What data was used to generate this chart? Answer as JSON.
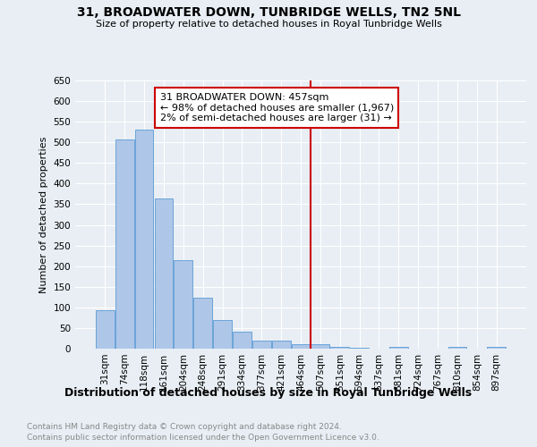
{
  "title1": "31, BROADWATER DOWN, TUNBRIDGE WELLS, TN2 5NL",
  "title2": "Size of property relative to detached houses in Royal Tunbridge Wells",
  "xlabel": "Distribution of detached houses by size in Royal Tunbridge Wells",
  "ylabel": "Number of detached properties",
  "footnote1": "Contains HM Land Registry data © Crown copyright and database right 2024.",
  "footnote2": "Contains public sector information licensed under the Open Government Licence v3.0.",
  "categories": [
    "31sqm",
    "74sqm",
    "118sqm",
    "161sqm",
    "204sqm",
    "248sqm",
    "291sqm",
    "334sqm",
    "377sqm",
    "421sqm",
    "464sqm",
    "507sqm",
    "551sqm",
    "594sqm",
    "637sqm",
    "681sqm",
    "724sqm",
    "767sqm",
    "810sqm",
    "854sqm",
    "897sqm"
  ],
  "values": [
    93,
    507,
    531,
    363,
    215,
    124,
    69,
    41,
    19,
    20,
    11,
    10,
    5,
    3,
    0,
    5,
    0,
    0,
    4,
    0,
    5
  ],
  "bar_color": "#aec6e8",
  "bar_edge_color": "#5b9bd5",
  "vline_x": 10.5,
  "vline_color": "#cc0000",
  "annotation_line1": "31 BROADWATER DOWN: 457sqm",
  "annotation_line2": "← 98% of detached houses are smaller (1,967)",
  "annotation_line3": "2% of semi-detached houses are larger (31) →",
  "ylim": [
    0,
    650
  ],
  "yticks": [
    0,
    50,
    100,
    150,
    200,
    250,
    300,
    350,
    400,
    450,
    500,
    550,
    600,
    650
  ],
  "background_color": "#e8eef4",
  "plot_background": "#e8eef4",
  "grid_color": "#ffffff",
  "title_fontsize": 10,
  "subtitle_fontsize": 8,
  "xlabel_fontsize": 9,
  "ylabel_fontsize": 8,
  "tick_fontsize": 7.5,
  "footnote_fontsize": 6.5,
  "annotation_fontsize": 8
}
